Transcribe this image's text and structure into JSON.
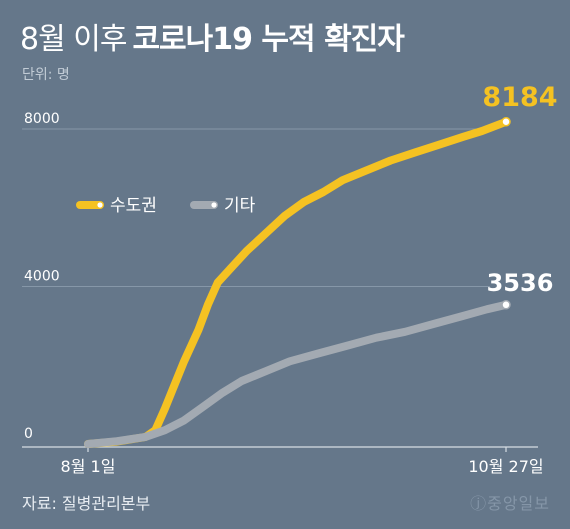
{
  "title": {
    "light": "8월 이후",
    "bold": "코로나19 누적 확진자"
  },
  "unit_label": "단위: 명",
  "source": "자료: 질병관리본부",
  "logo_text": "ⓙ중앙일보",
  "colors": {
    "background": "#65778a",
    "capital": "#f5c222",
    "other": "#a3aab2",
    "end_label_capital": "#f5c222",
    "end_label_other": "#ffffff"
  },
  "chart_data": {
    "type": "line",
    "title": "코로나19 누적 확진자",
    "ylabel": "단위: 명",
    "x_tick_labels": [
      "8월 1일",
      "10월 27일"
    ],
    "x_range": [
      "2020-08-01",
      "2020-10-27"
    ],
    "ylim": [
      0,
      8000
    ],
    "y_ticks": [
      "0",
      "4000",
      "8000"
    ],
    "legend_position": "upper-left",
    "series": [
      {
        "name": "수도권",
        "end_label": "8184",
        "points": [
          [
            "2020-08-01",
            0
          ],
          [
            "2020-08-07",
            60
          ],
          [
            "2020-08-13",
            180
          ],
          [
            "2020-08-15",
            350
          ],
          [
            "2020-08-17",
            900
          ],
          [
            "2020-08-19",
            1500
          ],
          [
            "2020-08-21",
            2100
          ],
          [
            "2020-08-24",
            2900
          ],
          [
            "2020-08-26",
            3550
          ],
          [
            "2020-08-28",
            4100
          ],
          [
            "2020-08-31",
            4500
          ],
          [
            "2020-09-03",
            4900
          ],
          [
            "2020-09-07",
            5350
          ],
          [
            "2020-09-11",
            5800
          ],
          [
            "2020-09-15",
            6150
          ],
          [
            "2020-09-19",
            6400
          ],
          [
            "2020-09-23",
            6700
          ],
          [
            "2020-09-28",
            6950
          ],
          [
            "2020-10-03",
            7200
          ],
          [
            "2020-10-08",
            7400
          ],
          [
            "2020-10-13",
            7600
          ],
          [
            "2020-10-18",
            7800
          ],
          [
            "2020-10-22",
            7950
          ],
          [
            "2020-10-27",
            8184
          ]
        ]
      },
      {
        "name": "기타",
        "end_label": "3536",
        "points": [
          [
            "2020-08-01",
            0
          ],
          [
            "2020-08-07",
            70
          ],
          [
            "2020-08-13",
            180
          ],
          [
            "2020-08-17",
            350
          ],
          [
            "2020-08-21",
            600
          ],
          [
            "2020-08-25",
            950
          ],
          [
            "2020-08-29",
            1300
          ],
          [
            "2020-09-02",
            1600
          ],
          [
            "2020-09-07",
            1850
          ],
          [
            "2020-09-12",
            2100
          ],
          [
            "2020-09-18",
            2300
          ],
          [
            "2020-09-24",
            2500
          ],
          [
            "2020-09-30",
            2700
          ],
          [
            "2020-10-06",
            2850
          ],
          [
            "2020-10-12",
            3050
          ],
          [
            "2020-10-18",
            3250
          ],
          [
            "2020-10-23",
            3420
          ],
          [
            "2020-10-27",
            3536
          ]
        ]
      }
    ]
  }
}
